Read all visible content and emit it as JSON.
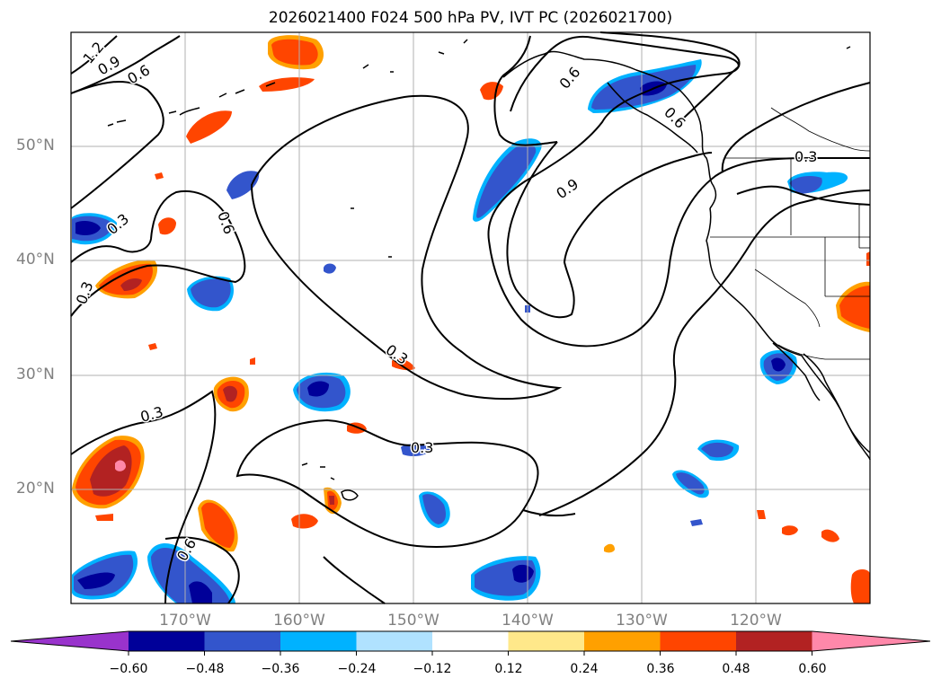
{
  "title": "2026021400 F024 500 hPa PV, IVT PC (2026021700)",
  "lat_labels": [
    "50°N",
    "40°N",
    "30°N",
    "20°N"
  ],
  "lon_labels": [
    "170°W",
    "160°W",
    "150°W",
    "140°W",
    "130°W",
    "120°W"
  ],
  "contour_labels": [
    "1.2",
    "0.9",
    "0.6",
    "0.3",
    "0.3",
    "0.6",
    "0.3",
    "0.3",
    "0.3",
    "0.6",
    "0.9",
    "0.6",
    "0.6",
    "0.3"
  ],
  "colorbar": {
    "labels": [
      "−0.60",
      "−0.48",
      "−0.36",
      "−0.24",
      "−0.12",
      "0.12",
      "0.24",
      "0.36",
      "0.48",
      "0.60"
    ],
    "colors": [
      "#9933cc",
      "#000099",
      "#3355cc",
      "#00b2ff",
      "#b0e2ff",
      "#ffffff",
      "#ffe88a",
      "#ffa000",
      "#ff4500",
      "#b22222",
      "#ff88aa"
    ]
  },
  "colors": {
    "neg_strong": "#000099",
    "neg_mid": "#3355cc",
    "neg_light": "#00b2ff",
    "pos_light": "#ffe88a",
    "pos_mid": "#ffa000",
    "pos_strong": "#ff4500",
    "pos_dark": "#b22222",
    "pos_max": "#ff88aa"
  }
}
